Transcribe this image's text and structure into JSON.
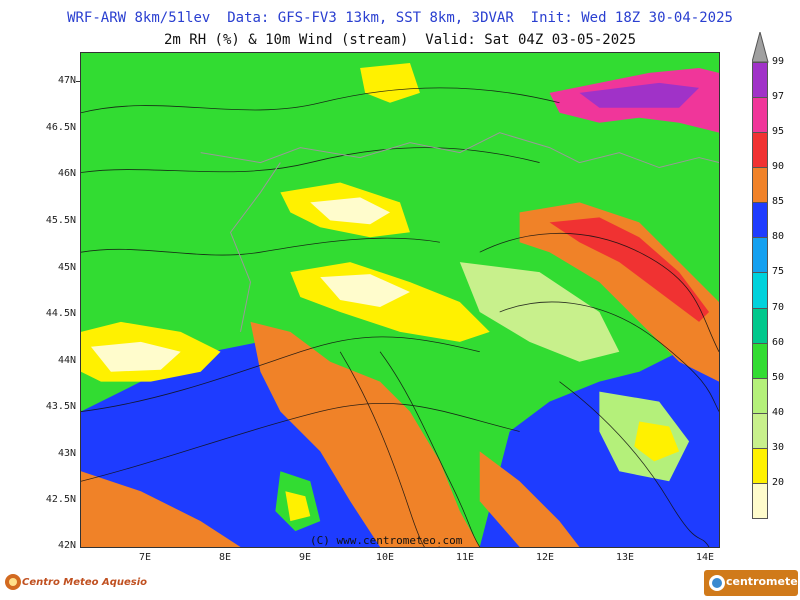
{
  "header": {
    "line1": "WRF-ARW 8km/51lev  Data: GFS-FV3 13km, SST 8km, 3DVAR  Init: Wed 18Z 30-04-2025",
    "line2": "2m RH (%) & 10m Wind (stream)  Valid: Sat 04Z 03-05-2025"
  },
  "axes": {
    "lat_labels": [
      "47N",
      "46.5N",
      "46N",
      "45.5N",
      "45N",
      "44.5N",
      "44N",
      "43.5N",
      "43N",
      "42.5N",
      "42N"
    ],
    "lon_labels": [
      "7E",
      "8E",
      "9E",
      "10E",
      "11E",
      "12E",
      "13E",
      "14E"
    ]
  },
  "legend": {
    "levels": [
      "20",
      "30",
      "40",
      "50",
      "60",
      "70",
      "75",
      "80",
      "85",
      "90",
      "95",
      "97",
      "99"
    ],
    "colors": [
      "#fffccc",
      "#fff100",
      "#c8f08c",
      "#b4f07a",
      "#32dc32",
      "#00c88c",
      "#00d2dc",
      "#14a0f0",
      "#1e3cff",
      "#f08228",
      "#f03232",
      "#f0369a",
      "#a032c8",
      "#a0a0a0"
    ]
  },
  "watermark": "(C) www.centrometeo.com",
  "logos": {
    "left": "Centro Meteo Aquesio",
    "right": "centrometeo"
  }
}
